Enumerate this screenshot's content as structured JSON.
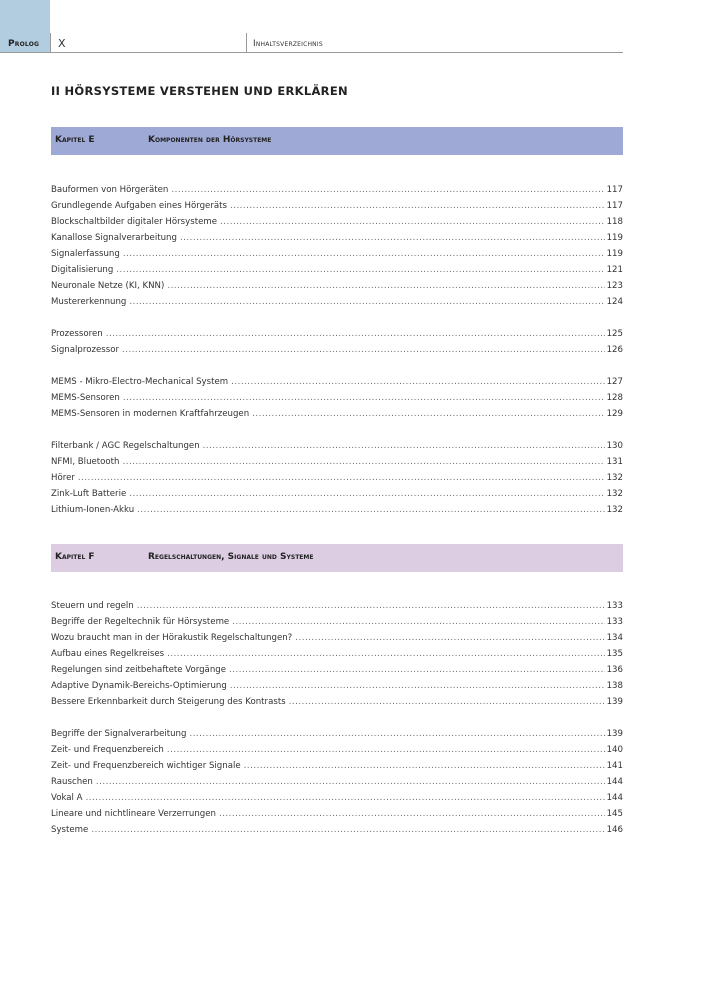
{
  "header": {
    "section": "Prolog",
    "page": "X",
    "running_title": "Inhaltsverzeichnis"
  },
  "part_title": "II HÖRSYSTEME VERSTEHEN UND ERKLÄREN",
  "chapters": [
    {
      "label": "Kapitel E",
      "title": "Komponenten der Hörsysteme",
      "color": "#9fa9d6",
      "groups": [
        [
          [
            "Bauformen von Hörgeräten",
            "117"
          ],
          [
            "Grundlegende Aufgaben eines Hörgeräts",
            "117"
          ],
          [
            "Blockschaltbilder digitaler Hörsysteme",
            "118"
          ],
          [
            "Kanallose Signalverarbeitung",
            "119"
          ],
          [
            "Signalerfassung",
            "119"
          ],
          [
            "Digitalisierung",
            "121"
          ],
          [
            "Neuronale Netze (KI, KNN)",
            "123"
          ],
          [
            "Mustererkennung",
            "124"
          ]
        ],
        [
          [
            "Prozessoren",
            "125"
          ],
          [
            "Signalprozessor",
            "126"
          ]
        ],
        [
          [
            "MEMS - Mikro-Electro-Mechanical System",
            "127"
          ],
          [
            "MEMS-Sensoren",
            "128"
          ],
          [
            "MEMS-Sensoren in modernen Kraftfahrzeugen",
            "129"
          ]
        ],
        [
          [
            "Filterbank / AGC Regelschaltungen",
            "130"
          ],
          [
            "NFMI, Bluetooth",
            "131"
          ],
          [
            "Hörer",
            "132"
          ],
          [
            "Zink-Luft Batterie",
            "132"
          ],
          [
            "Lithium-Ionen-Akku",
            "132"
          ]
        ]
      ]
    },
    {
      "label": "Kapitel F",
      "title": "Regelschaltungen, Signale und Systeme",
      "color": "#dccde3",
      "groups": [
        [
          [
            "Steuern und regeln",
            "133"
          ],
          [
            "Begriffe der Regeltechnik für Hörsysteme",
            "133"
          ],
          [
            "Wozu braucht man in der Hörakustik Regelschaltungen?",
            "134"
          ],
          [
            "Aufbau eines Regelkreises",
            "135"
          ],
          [
            "Regelungen sind zeitbehaftete Vorgänge",
            "136"
          ],
          [
            "Adaptive Dynamik-Bereichs-Optimierung",
            "138"
          ],
          [
            "Bessere Erkennbarkeit durch Steigerung des Kontrasts",
            "139"
          ]
        ],
        [
          [
            "Begriffe der Signalverarbeitung",
            "139"
          ],
          [
            "Zeit- und Frequenzbereich",
            "140"
          ],
          [
            "Zeit- und Frequenzbereich wichtiger Signale",
            "141"
          ],
          [
            "Rauschen",
            "144"
          ],
          [
            "Vokal A",
            "144"
          ],
          [
            "Lineare und nichtlineare Verzerrungen",
            "145"
          ],
          [
            "Systeme",
            "146"
          ]
        ]
      ]
    }
  ]
}
